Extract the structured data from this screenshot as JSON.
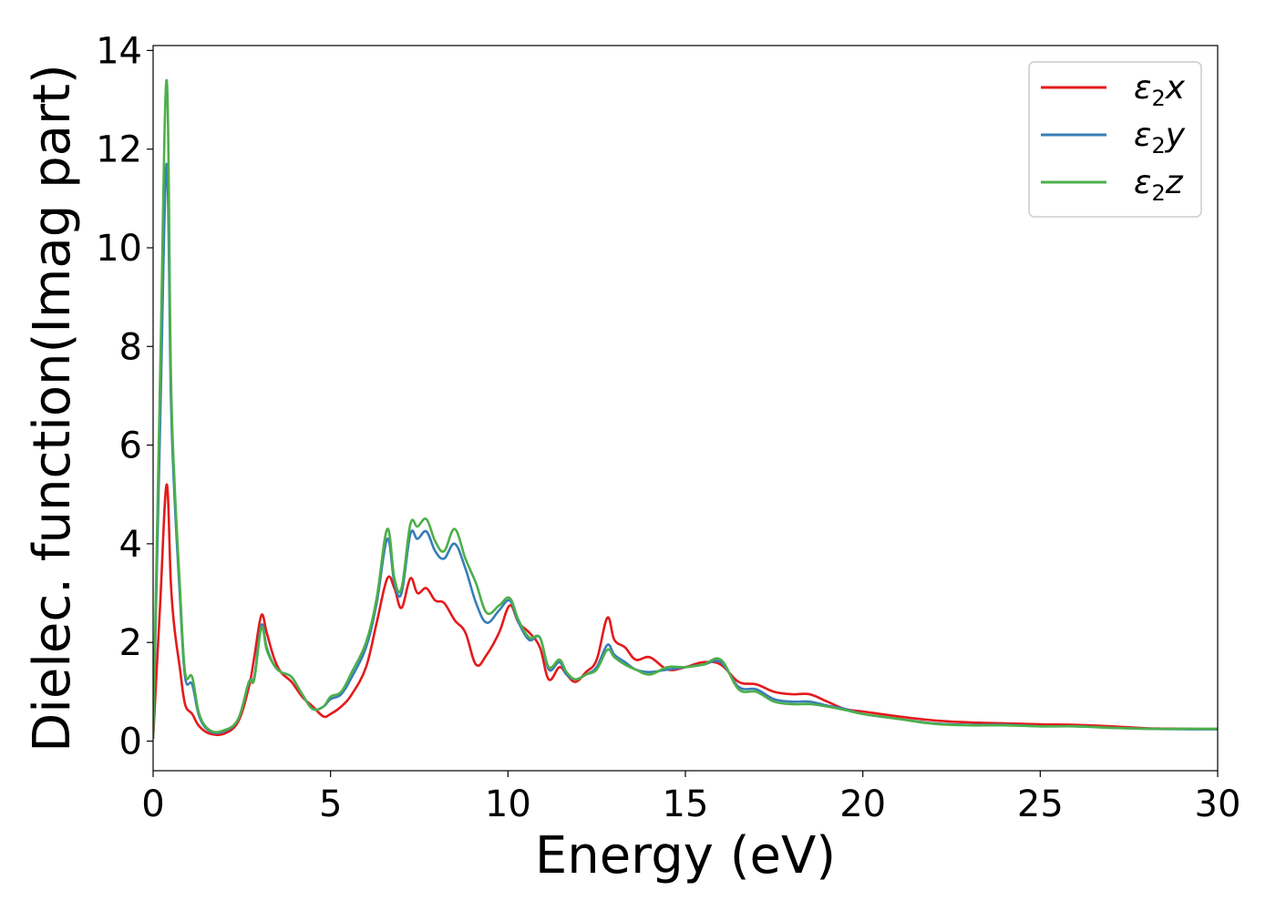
{
  "chart_data": {
    "type": "line",
    "xlabel": "Energy (eV)",
    "ylabel": "Dielec. function(Imag part)",
    "xlim": [
      0,
      30
    ],
    "ylim": [
      -0.6,
      14.1
    ],
    "xticks": [
      0,
      5,
      10,
      15,
      20,
      25,
      30
    ],
    "yticks": [
      0,
      2,
      4,
      6,
      8,
      10,
      12,
      14
    ],
    "grid": false,
    "legend_position": "top-right",
    "series": [
      {
        "name": "ε2x",
        "color": "#e41a1c",
        "x": [
          0,
          0.2,
          0.38,
          0.5,
          0.6,
          0.75,
          0.9,
          1.1,
          1.3,
          1.6,
          2.0,
          2.4,
          2.7,
          2.85,
          3.05,
          3.2,
          3.4,
          3.6,
          3.9,
          4.2,
          4.5,
          4.8,
          5.0,
          5.3,
          5.6,
          6.0,
          6.3,
          6.6,
          6.8,
          7.0,
          7.25,
          7.45,
          7.7,
          7.95,
          8.2,
          8.5,
          8.8,
          9.1,
          9.4,
          9.75,
          10.05,
          10.3,
          10.6,
          10.9,
          11.15,
          11.45,
          11.65,
          11.9,
          12.2,
          12.5,
          12.8,
          13.0,
          13.3,
          13.6,
          14.0,
          14.5,
          15.0,
          15.5,
          16.0,
          16.5,
          17.0,
          17.5,
          18.0,
          18.5,
          19.0,
          19.5,
          20.0,
          21.0,
          22.0,
          23.0,
          24.0,
          25.0,
          26.0,
          27.0,
          28.0,
          29.0,
          30.0
        ],
        "y": [
          0.05,
          2.8,
          5.2,
          3.2,
          2.3,
          1.5,
          0.75,
          0.55,
          0.3,
          0.15,
          0.15,
          0.4,
          1.1,
          1.7,
          2.55,
          2.2,
          1.7,
          1.4,
          1.2,
          0.9,
          0.7,
          0.5,
          0.55,
          0.7,
          0.95,
          1.5,
          2.4,
          3.3,
          3.1,
          2.7,
          3.3,
          3.0,
          3.1,
          2.85,
          2.8,
          2.45,
          2.2,
          1.55,
          1.75,
          2.2,
          2.75,
          2.4,
          2.2,
          1.9,
          1.25,
          1.5,
          1.35,
          1.2,
          1.4,
          1.65,
          2.5,
          2.05,
          1.9,
          1.65,
          1.7,
          1.45,
          1.5,
          1.6,
          1.55,
          1.2,
          1.15,
          1.0,
          0.95,
          0.95,
          0.8,
          0.65,
          0.6,
          0.5,
          0.42,
          0.38,
          0.36,
          0.34,
          0.33,
          0.3,
          0.26,
          0.25,
          0.24
        ]
      },
      {
        "name": "ε2y",
        "color": "#377eb8",
        "x": [
          0,
          0.2,
          0.38,
          0.5,
          0.6,
          0.75,
          0.9,
          1.1,
          1.3,
          1.6,
          2.0,
          2.4,
          2.7,
          2.85,
          3.05,
          3.2,
          3.4,
          3.6,
          3.9,
          4.2,
          4.5,
          4.8,
          5.0,
          5.3,
          5.6,
          6.0,
          6.3,
          6.6,
          6.8,
          7.0,
          7.25,
          7.45,
          7.7,
          7.95,
          8.2,
          8.5,
          8.8,
          9.1,
          9.4,
          9.75,
          10.05,
          10.3,
          10.6,
          10.9,
          11.15,
          11.45,
          11.65,
          11.9,
          12.2,
          12.5,
          12.8,
          13.0,
          13.3,
          13.6,
          14.0,
          14.5,
          15.0,
          15.5,
          16.0,
          16.5,
          17.0,
          17.5,
          18.0,
          18.5,
          19.0,
          19.5,
          20.0,
          21.0,
          22.0,
          23.0,
          24.0,
          25.0,
          26.0,
          27.0,
          28.0,
          29.0,
          30.0
        ],
        "y": [
          0.05,
          6.5,
          11.7,
          7.0,
          5.0,
          3.0,
          1.3,
          1.15,
          0.5,
          0.2,
          0.2,
          0.45,
          1.2,
          1.3,
          2.35,
          1.9,
          1.55,
          1.4,
          1.3,
          0.95,
          0.65,
          0.7,
          0.85,
          0.95,
          1.3,
          1.9,
          2.8,
          4.1,
          3.2,
          3.0,
          4.2,
          4.1,
          4.25,
          3.85,
          3.7,
          4.0,
          3.5,
          2.8,
          2.4,
          2.65,
          2.85,
          2.4,
          2.05,
          2.1,
          1.45,
          1.6,
          1.35,
          1.25,
          1.35,
          1.5,
          1.95,
          1.75,
          1.6,
          1.45,
          1.4,
          1.45,
          1.5,
          1.55,
          1.6,
          1.1,
          1.05,
          0.85,
          0.8,
          0.8,
          0.72,
          0.65,
          0.55,
          0.45,
          0.36,
          0.33,
          0.33,
          0.3,
          0.3,
          0.27,
          0.25,
          0.24,
          0.24
        ]
      },
      {
        "name": "ε2z",
        "color": "#4daf4a",
        "x": [
          0,
          0.2,
          0.38,
          0.5,
          0.6,
          0.75,
          0.9,
          1.1,
          1.3,
          1.6,
          2.0,
          2.4,
          2.7,
          2.85,
          3.05,
          3.2,
          3.4,
          3.6,
          3.9,
          4.2,
          4.5,
          4.8,
          5.0,
          5.3,
          5.6,
          6.0,
          6.3,
          6.6,
          6.8,
          7.0,
          7.25,
          7.45,
          7.7,
          7.95,
          8.2,
          8.5,
          8.8,
          9.1,
          9.4,
          9.75,
          10.05,
          10.3,
          10.6,
          10.9,
          11.15,
          11.45,
          11.65,
          11.9,
          12.2,
          12.5,
          12.8,
          13.0,
          13.3,
          13.6,
          14.0,
          14.5,
          15.0,
          15.5,
          16.0,
          16.5,
          17.0,
          17.5,
          18.0,
          18.5,
          19.0,
          19.5,
          20.0,
          21.0,
          22.0,
          23.0,
          24.0,
          25.0,
          26.0,
          27.0,
          28.0,
          29.0,
          30.0
        ],
        "y": [
          0.05,
          7.5,
          13.4,
          7.5,
          5.3,
          3.2,
          1.4,
          1.3,
          0.55,
          0.22,
          0.22,
          0.45,
          1.2,
          1.25,
          2.3,
          1.85,
          1.55,
          1.4,
          1.3,
          0.95,
          0.65,
          0.7,
          0.9,
          1.0,
          1.4,
          2.0,
          2.9,
          4.3,
          3.3,
          3.1,
          4.4,
          4.35,
          4.5,
          4.05,
          3.85,
          4.3,
          3.7,
          3.2,
          2.6,
          2.75,
          2.9,
          2.45,
          2.1,
          2.1,
          1.5,
          1.65,
          1.4,
          1.25,
          1.35,
          1.45,
          1.85,
          1.7,
          1.55,
          1.45,
          1.35,
          1.5,
          1.5,
          1.55,
          1.65,
          1.05,
          1.0,
          0.8,
          0.75,
          0.75,
          0.7,
          0.63,
          0.55,
          0.45,
          0.35,
          0.32,
          0.32,
          0.3,
          0.3,
          0.27,
          0.25,
          0.25,
          0.25
        ]
      }
    ]
  }
}
